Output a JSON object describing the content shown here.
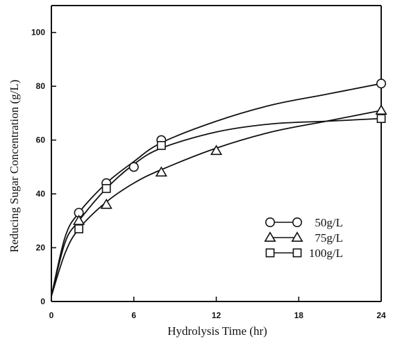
{
  "chart_data": {
    "type": "scatter",
    "title": "",
    "xlabel": "Hydrolysis Time (hr)",
    "ylabel": "Reducing Sugar Concentration (g/L)",
    "xlim": [
      0,
      24
    ],
    "ylim": [
      0,
      110
    ],
    "xticks": [
      0,
      6,
      12,
      18,
      24
    ],
    "yticks": [
      0,
      20,
      40,
      60,
      80,
      100
    ],
    "grid": false,
    "legend_position": "lower-right",
    "series": [
      {
        "name": "50g/L",
        "marker": "circle",
        "points": [
          {
            "x": 2,
            "y": 33
          },
          {
            "x": 4,
            "y": 44
          },
          {
            "x": 6,
            "y": 50
          },
          {
            "x": 8,
            "y": 60
          },
          {
            "x": 24,
            "y": 81
          }
        ],
        "curve": [
          {
            "x": 0,
            "y": 2
          },
          {
            "x": 1,
            "y": 24
          },
          {
            "x": 2,
            "y": 33
          },
          {
            "x": 4,
            "y": 44
          },
          {
            "x": 6,
            "y": 52
          },
          {
            "x": 8,
            "y": 59
          },
          {
            "x": 12,
            "y": 67
          },
          {
            "x": 16,
            "y": 73
          },
          {
            "x": 20,
            "y": 77
          },
          {
            "x": 24,
            "y": 81
          }
        ]
      },
      {
        "name": "75g/L",
        "marker": "triangle",
        "points": [
          {
            "x": 2,
            "y": 30
          },
          {
            "x": 4,
            "y": 36
          },
          {
            "x": 8,
            "y": 48
          },
          {
            "x": 12,
            "y": 56
          },
          {
            "x": 24,
            "y": 71
          }
        ],
        "curve": [
          {
            "x": 0,
            "y": 2
          },
          {
            "x": 1,
            "y": 18
          },
          {
            "x": 2,
            "y": 27
          },
          {
            "x": 4,
            "y": 37
          },
          {
            "x": 6,
            "y": 44
          },
          {
            "x": 8,
            "y": 49
          },
          {
            "x": 12,
            "y": 57
          },
          {
            "x": 16,
            "y": 63
          },
          {
            "x": 20,
            "y": 67
          },
          {
            "x": 24,
            "y": 71
          }
        ]
      },
      {
        "name": "100g/L",
        "marker": "square",
        "points": [
          {
            "x": 2,
            "y": 27
          },
          {
            "x": 4,
            "y": 42
          },
          {
            "x": 8,
            "y": 58
          },
          {
            "x": 24,
            "y": 68
          }
        ],
        "curve": [
          {
            "x": 0,
            "y": 2
          },
          {
            "x": 1,
            "y": 22
          },
          {
            "x": 2,
            "y": 30
          },
          {
            "x": 4,
            "y": 42
          },
          {
            "x": 6,
            "y": 51
          },
          {
            "x": 8,
            "y": 57
          },
          {
            "x": 12,
            "y": 63
          },
          {
            "x": 16,
            "y": 66
          },
          {
            "x": 20,
            "y": 67
          },
          {
            "x": 24,
            "y": 68
          }
        ]
      }
    ]
  }
}
